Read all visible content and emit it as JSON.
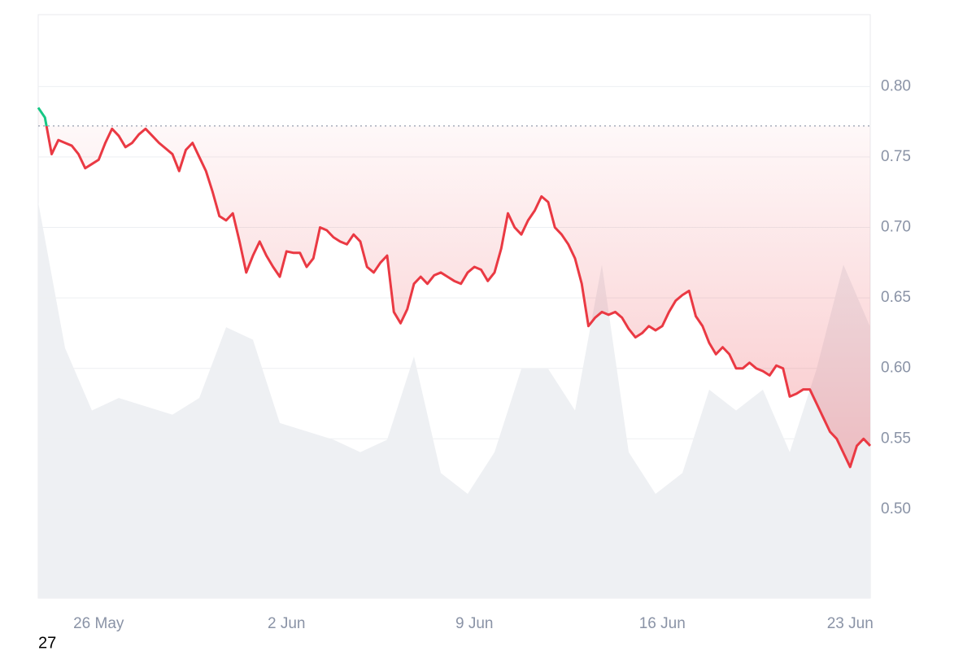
{
  "chart_data": {
    "type": "line",
    "categories": [
      null,
      null,
      null,
      null,
      null,
      null,
      null,
      null,
      null,
      "26 May",
      null,
      null,
      null,
      null,
      null,
      null,
      null,
      null,
      null,
      null,
      null,
      null,
      null,
      null,
      null,
      null,
      null,
      null,
      null,
      null,
      null,
      null,
      null,
      null,
      null,
      null,
      null,
      "2 Jun",
      null,
      null,
      null,
      null,
      null,
      null,
      null,
      null,
      null,
      null,
      null,
      null,
      null,
      null,
      null,
      null,
      null,
      null,
      null,
      null,
      null,
      null,
      null,
      null,
      null,
      null,
      null,
      "9 Jun",
      null,
      null,
      null,
      null,
      null,
      null,
      null,
      null,
      null,
      null,
      null,
      null,
      null,
      null,
      null,
      null,
      null,
      null,
      null,
      null,
      null,
      null,
      null,
      null,
      null,
      null,
      null,
      "16 Jun",
      null,
      null,
      null,
      null,
      null,
      null,
      null,
      null,
      null,
      null,
      null,
      null,
      null,
      null,
      null,
      null,
      null,
      null,
      null,
      null,
      null,
      null,
      null,
      null,
      null,
      null,
      null,
      "23 Jun",
      null,
      null,
      null
    ],
    "values": [
      0.785,
      0.778,
      0.752,
      0.762,
      0.76,
      0.758,
      0.752,
      0.742,
      0.745,
      0.748,
      0.76,
      0.77,
      0.765,
      0.757,
      0.76,
      0.766,
      0.77,
      0.765,
      0.76,
      0.756,
      0.752,
      0.74,
      0.755,
      0.76,
      0.75,
      0.74,
      0.725,
      0.708,
      0.705,
      0.71,
      0.69,
      0.668,
      0.68,
      0.69,
      0.68,
      0.672,
      0.665,
      0.683,
      0.682,
      0.682,
      0.672,
      0.678,
      0.7,
      0.698,
      0.693,
      0.69,
      0.688,
      0.695,
      0.69,
      0.672,
      0.668,
      0.675,
      0.68,
      0.64,
      0.632,
      0.642,
      0.66,
      0.665,
      0.66,
      0.666,
      0.668,
      0.665,
      0.662,
      0.66,
      0.668,
      0.672,
      0.67,
      0.662,
      0.668,
      0.685,
      0.71,
      0.7,
      0.695,
      0.705,
      0.712,
      0.722,
      0.718,
      0.7,
      0.695,
      0.688,
      0.678,
      0.66,
      0.63,
      0.636,
      0.64,
      0.638,
      0.64,
      0.636,
      0.628,
      0.622,
      0.625,
      0.63,
      0.627,
      0.63,
      0.64,
      0.648,
      0.652,
      0.655,
      0.637,
      0.63,
      0.618,
      0.61,
      0.615,
      0.61,
      0.6,
      0.6,
      0.604,
      0.6,
      0.598,
      0.595,
      0.602,
      0.6,
      0.58,
      0.582,
      0.585,
      0.585,
      0.575,
      0.565,
      0.555,
      0.55,
      0.54,
      0.53,
      0.545,
      0.55,
      0.545
    ],
    "baseline": 0.772,
    "up_color": "#16c784",
    "down_color": "#ea3943",
    "ylim": [
      0.437,
      0.851
    ],
    "yticks": [
      {
        "value": 0.5,
        "label": "0.50"
      },
      {
        "value": 0.55,
        "label": "0.55"
      },
      {
        "value": 0.6,
        "label": "0.60"
      },
      {
        "value": 0.65,
        "label": "0.65"
      },
      {
        "value": 0.7,
        "label": "0.70"
      },
      {
        "value": 0.75,
        "label": "0.75"
      },
      {
        "value": 0.8,
        "label": "0.80"
      }
    ],
    "grid": true,
    "volume": {
      "color": "#eef0f3",
      "vlim": [
        0,
        140
      ],
      "values": [
        95,
        60,
        45,
        48,
        46,
        44,
        48,
        65,
        62,
        42,
        40,
        38,
        35,
        38,
        58,
        30,
        25,
        35,
        55,
        55,
        45,
        80,
        35,
        25,
        30,
        50,
        45,
        50,
        35,
        55,
        80,
        65
      ]
    }
  },
  "footer": "27"
}
